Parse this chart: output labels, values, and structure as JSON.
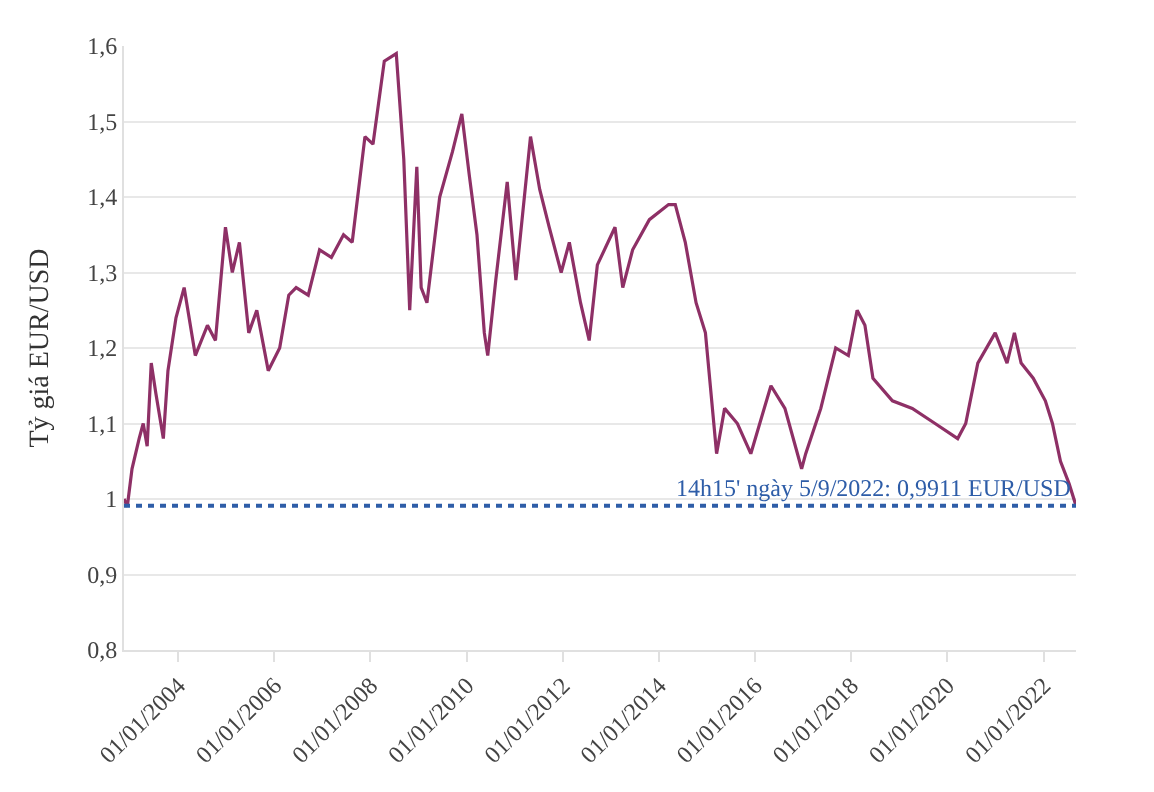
{
  "chart_data": {
    "type": "line",
    "ylabel": "Tỷ giá EUR/USD",
    "x": [
      "2002-11-15",
      "2002-12-10",
      "2003-01-15",
      "2003-03-10",
      "2003-04-10",
      "2003-05-10",
      "2003-06-10",
      "2003-07-15",
      "2003-09-10",
      "2003-10-15",
      "2003-12-15",
      "2004-02-15",
      "2004-05-10",
      "2004-08-10",
      "2004-10-10",
      "2004-12-25",
      "2005-02-15",
      "2005-04-10",
      "2005-06-20",
      "2005-08-20",
      "2005-11-15",
      "2006-02-10",
      "2006-04-20",
      "2006-06-15",
      "2006-09-15",
      "2006-12-10",
      "2007-03-10",
      "2007-06-10",
      "2007-08-15",
      "2007-11-20",
      "2008-01-20",
      "2008-04-15",
      "2008-07-15",
      "2008-09-10",
      "2008-10-25",
      "2008-12-18",
      "2009-01-20",
      "2009-03-05",
      "2009-06-10",
      "2009-09-15",
      "2009-11-25",
      "2010-01-20",
      "2010-03-20",
      "2010-05-15",
      "2010-06-10",
      "2010-08-10",
      "2010-11-05",
      "2011-01-10",
      "2011-05-01",
      "2011-07-10",
      "2011-09-20",
      "2011-12-20",
      "2012-02-20",
      "2012-05-15",
      "2012-07-20",
      "2012-09-20",
      "2013-02-01",
      "2013-04-01",
      "2013-06-15",
      "2013-10-20",
      "2014-03-15",
      "2014-05-05",
      "2014-07-20",
      "2014-10-10",
      "2014-12-20",
      "2015-03-15",
      "2015-05-15",
      "2015-08-20",
      "2015-11-30",
      "2016-05-01",
      "2016-08-15",
      "2016-12-20",
      "2017-01-20",
      "2017-05-15",
      "2017-09-05",
      "2017-12-10",
      "2018-02-15",
      "2018-04-15",
      "2018-06-15",
      "2018-11-10",
      "2019-04-10",
      "2019-09-30",
      "2020-03-20",
      "2020-05-20",
      "2020-08-20",
      "2020-12-30",
      "2021-03-30",
      "2021-05-25",
      "2021-07-15",
      "2021-10-15",
      "2022-01-15",
      "2022-03-10",
      "2022-05-10",
      "2022-07-15",
      "2022-09-05"
    ],
    "series": [
      {
        "color": "#8e3066",
        "values": [
          1.0,
          0.99,
          1.04,
          1.08,
          1.1,
          1.07,
          1.18,
          1.14,
          1.08,
          1.17,
          1.24,
          1.28,
          1.19,
          1.23,
          1.21,
          1.36,
          1.3,
          1.34,
          1.22,
          1.25,
          1.17,
          1.2,
          1.27,
          1.28,
          1.27,
          1.33,
          1.32,
          1.35,
          1.34,
          1.48,
          1.47,
          1.58,
          1.59,
          1.45,
          1.25,
          1.44,
          1.28,
          1.26,
          1.4,
          1.46,
          1.51,
          1.43,
          1.35,
          1.22,
          1.19,
          1.29,
          1.42,
          1.29,
          1.48,
          1.41,
          1.36,
          1.3,
          1.34,
          1.26,
          1.21,
          1.31,
          1.36,
          1.28,
          1.33,
          1.37,
          1.39,
          1.39,
          1.34,
          1.26,
          1.22,
          1.06,
          1.12,
          1.1,
          1.06,
          1.15,
          1.12,
          1.04,
          1.06,
          1.12,
          1.2,
          1.19,
          1.25,
          1.23,
          1.16,
          1.13,
          1.12,
          1.1,
          1.08,
          1.1,
          1.18,
          1.22,
          1.18,
          1.22,
          1.18,
          1.16,
          1.13,
          1.1,
          1.05,
          1.02,
          0.9911
        ]
      }
    ],
    "xlim": [
      "2002-11-15",
      "2022-09-05"
    ],
    "xticks": [
      {
        "value": "2004-01-01",
        "label": "01/01/2004"
      },
      {
        "value": "2006-01-01",
        "label": "01/01/2006"
      },
      {
        "value": "2008-01-01",
        "label": "01/01/2008"
      },
      {
        "value": "2010-01-01",
        "label": "01/01/2010"
      },
      {
        "value": "2012-01-01",
        "label": "01/01/2012"
      },
      {
        "value": "2014-01-01",
        "label": "01/01/2014"
      },
      {
        "value": "2016-01-01",
        "label": "01/01/2016"
      },
      {
        "value": "2018-01-01",
        "label": "01/01/2018"
      },
      {
        "value": "2020-01-01",
        "label": "01/01/2020"
      },
      {
        "value": "2022-01-01",
        "label": "01/01/2022"
      }
    ],
    "ylim": [
      0.8,
      1.6
    ],
    "yticks": [
      {
        "value": 0.8,
        "label": "0,8"
      },
      {
        "value": 0.9,
        "label": "0,9"
      },
      1,
      {
        "value": 1.1,
        "label": "1,1"
      },
      {
        "value": 1.2,
        "label": "1,2"
      },
      {
        "value": 1.3,
        "label": "1,3"
      },
      {
        "value": 1.4,
        "label": "1,4"
      },
      {
        "value": 1.5,
        "label": "1,5"
      },
      {
        "value": 1.6,
        "label": "1,6"
      }
    ],
    "ref_lines": [
      {
        "axis": "y",
        "value": 0.9911,
        "label": "14h15' ngày 5/9/2022: 0,9911 EUR/USD",
        "color": "#2e5da8",
        "line_style": "dotted"
      }
    ],
    "grid": "y",
    "legend": false,
    "marker": "none",
    "line_style": "solid"
  }
}
